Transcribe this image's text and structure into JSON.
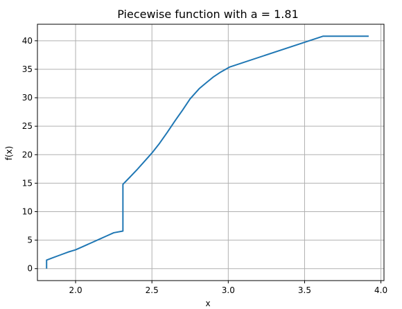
{
  "chart_data": {
    "type": "line",
    "title": "Piecewise function with a = 1.81",
    "xlabel": "x",
    "ylabel": "f(x)",
    "xlim": [
      1.75,
      4.02
    ],
    "ylim": [
      -2.1,
      42.9
    ],
    "grid": true,
    "x_ticks": [
      2.0,
      2.5,
      3.0,
      3.5,
      4.0
    ],
    "x_tick_labels": [
      "2.0",
      "2.5",
      "3.0",
      "3.5",
      "4.0"
    ],
    "y_ticks": [
      0,
      5,
      10,
      15,
      20,
      25,
      30,
      35,
      40
    ],
    "y_tick_labels": [
      "0",
      "5",
      "10",
      "15",
      "20",
      "25",
      "30",
      "35",
      "40"
    ],
    "line_color": "#1f77b4",
    "series": [
      {
        "x": [
          1.81,
          1.81,
          1.81,
          1.85,
          1.9,
          1.95,
          2.0,
          2.05,
          2.1,
          2.15,
          2.2,
          2.25,
          2.31,
          2.31,
          2.31,
          2.35,
          2.4,
          2.45,
          2.5,
          2.55,
          2.6,
          2.65,
          2.7,
          2.75,
          2.81,
          2.81,
          2.85,
          2.9,
          2.95,
          3.01,
          3.01,
          3.62,
          3.62,
          3.92
        ],
        "y": [
          0.0,
          1.5,
          1.5,
          1.9,
          2.4,
          2.9,
          3.3,
          3.9,
          4.5,
          5.1,
          5.7,
          6.3,
          6.6,
          6.6,
          14.8,
          15.9,
          17.3,
          18.8,
          20.3,
          22.0,
          23.9,
          25.9,
          27.8,
          29.8,
          31.6,
          31.6,
          32.5,
          33.6,
          34.5,
          35.4,
          35.4,
          40.8,
          40.8,
          40.8
        ]
      }
    ]
  }
}
